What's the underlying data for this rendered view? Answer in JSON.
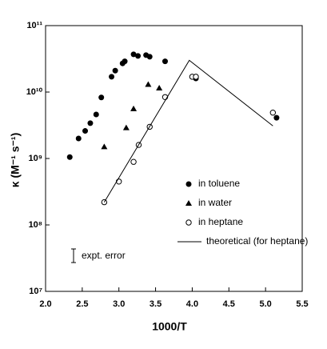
{
  "chart_data": {
    "type": "scatter",
    "xlabel": "1000/T",
    "ylabel": "κ (M⁻¹ s⁻¹)",
    "xlim": [
      2.0,
      5.5
    ],
    "xticks": [
      {
        "value": 2.0,
        "label": "2.0"
      },
      2.5,
      {
        "value": 3.0,
        "label": "3.0"
      },
      3.5,
      {
        "value": 4.0,
        "label": "4.0"
      },
      4.5,
      {
        "value": 5.0,
        "label": "5.0"
      },
      5.5
    ],
    "ylim": [
      10000000,
      100000000000
    ],
    "log_y": true,
    "yticks": [
      {
        "value": 10000000,
        "label": "10⁷"
      },
      {
        "value": 100000000,
        "label": "10⁸"
      },
      {
        "value": 1000000000,
        "label": "10⁹"
      },
      {
        "value": 10000000000,
        "label": "10¹⁰"
      },
      {
        "value": 100000000000,
        "label": "10¹¹"
      }
    ],
    "annotation": "expt. error",
    "series": [
      {
        "name": "in toluene",
        "color": "#000000",
        "marker": "filled-circle",
        "x": [
          2.33,
          2.45,
          2.54,
          2.61,
          2.69,
          2.76,
          2.9,
          2.95,
          3.05,
          3.08,
          3.2,
          3.26,
          3.37,
          3.42,
          3.63,
          4.05,
          5.15
        ],
        "values": [
          1050000000,
          2000000000,
          2600000000,
          3400000000,
          4600000000,
          8300000000,
          17000000000,
          21000000000,
          27000000000,
          29000000000,
          37000000000,
          35000000000,
          36000000000,
          34000000000,
          29000000000,
          16000000000,
          4100000000
        ]
      },
      {
        "name": "in water",
        "color": "#000000",
        "marker": "filled-triangle",
        "x": [
          2.8,
          3.1,
          3.2,
          3.4,
          3.55
        ],
        "values": [
          1500000000,
          2900000000,
          5600000000,
          13000000000,
          11500000000
        ]
      },
      {
        "name": "in heptane",
        "color": "#000000",
        "marker": "open-circle",
        "x": [
          2.8,
          3.0,
          3.2,
          3.27,
          3.42,
          3.63,
          4.0,
          4.05,
          5.1
        ],
        "values": [
          220000000,
          450000000,
          890000000,
          1600000000,
          3000000000,
          8400000000,
          17000000000,
          17000000000,
          4900000000
        ]
      },
      {
        "name": "theoretical (for heptane)",
        "color": "#000000",
        "marker": "line",
        "x": [
          2.8,
          3.96,
          5.1
        ],
        "values": [
          220000000,
          30000000000,
          3100000000
        ]
      }
    ]
  }
}
